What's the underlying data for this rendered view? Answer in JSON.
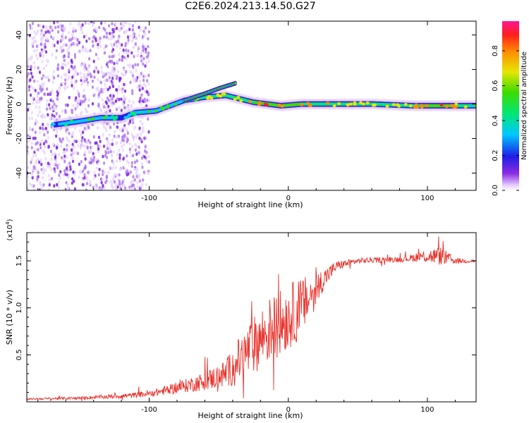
{
  "title": "C2E6.2024.213.14.50.G27",
  "chart_data": [
    {
      "id": "spectrogram",
      "type": "heatmap",
      "xlabel": "Height of straight line (km)",
      "ylabel": "Frequency (Hz)",
      "xlim": [
        -188,
        135
      ],
      "ylim": [
        -50,
        48
      ],
      "x_ticks": [
        -100,
        0,
        100
      ],
      "y_ticks": [
        -40,
        -20,
        0,
        20,
        40
      ],
      "colorbar": {
        "label": "Normalized spectral amplitude",
        "range": [
          0,
          0.97
        ],
        "ticks": [
          0.0,
          0.2,
          0.4,
          0.6,
          0.8
        ]
      },
      "noise_region_x": [
        -188,
        -100
      ],
      "ridge": [
        {
          "x": -168,
          "f": -12,
          "amp": 0.3
        },
        {
          "x": -150,
          "f": -10,
          "amp": 0.45
        },
        {
          "x": -135,
          "f": -8,
          "amp": 0.5
        },
        {
          "x": -120,
          "f": -8,
          "amp": 0.3
        },
        {
          "x": -110,
          "f": -5,
          "amp": 0.35
        },
        {
          "x": -95,
          "f": -4,
          "amp": 0.55
        },
        {
          "x": -85,
          "f": -1,
          "amp": 0.5
        },
        {
          "x": -75,
          "f": 2,
          "amp": 0.55
        },
        {
          "x": -60,
          "f": 4,
          "amp": 0.6
        },
        {
          "x": -45,
          "f": 5,
          "amp": 0.6
        },
        {
          "x": -35,
          "f": 3,
          "amp": 0.65
        },
        {
          "x": -25,
          "f": 1,
          "amp": 0.75
        },
        {
          "x": -15,
          "f": 0,
          "amp": 0.85
        },
        {
          "x": -5,
          "f": -1,
          "amp": 0.8
        },
        {
          "x": 10,
          "f": 0,
          "amp": 0.75
        },
        {
          "x": 30,
          "f": 0,
          "amp": 0.7
        },
        {
          "x": 60,
          "f": 0,
          "amp": 0.65
        },
        {
          "x": 90,
          "f": -1,
          "amp": 0.7
        },
        {
          "x": 110,
          "f": -1,
          "amp": 0.85
        },
        {
          "x": 135,
          "f": -1,
          "amp": 0.5
        }
      ],
      "branch": [
        {
          "x": -75,
          "f": 2
        },
        {
          "x": -60,
          "f": 6
        },
        {
          "x": -50,
          "f": 9
        },
        {
          "x": -38,
          "f": 12
        }
      ]
    },
    {
      "id": "snr",
      "type": "line",
      "xlabel": "Height of straight line (km)",
      "ylabel": "SNR (10 * v/v)",
      "y_multiplier": "(x10^4)",
      "xlim": [
        -188,
        135
      ],
      "ylim": [
        0,
        1.8
      ],
      "x_ticks": [
        -100,
        0,
        100
      ],
      "y_ticks": [
        0.5,
        1.0,
        1.5
      ],
      "y_tick_labels": [
        "0.5",
        "1.0",
        "1.5"
      ],
      "color": "#e8312a",
      "envelope": [
        {
          "x": -188,
          "y": 0.03,
          "noise": 0.01
        },
        {
          "x": -150,
          "y": 0.04,
          "noise": 0.015
        },
        {
          "x": -110,
          "y": 0.07,
          "noise": 0.03
        },
        {
          "x": -95,
          "y": 0.1,
          "noise": 0.04
        },
        {
          "x": -80,
          "y": 0.15,
          "noise": 0.06
        },
        {
          "x": -60,
          "y": 0.22,
          "noise": 0.1
        },
        {
          "x": -45,
          "y": 0.3,
          "noise": 0.15
        },
        {
          "x": -35,
          "y": 0.45,
          "noise": 0.25
        },
        {
          "x": -25,
          "y": 0.6,
          "noise": 0.3
        },
        {
          "x": -15,
          "y": 0.75,
          "noise": 0.35
        },
        {
          "x": -5,
          "y": 0.85,
          "noise": 0.35
        },
        {
          "x": 5,
          "y": 0.95,
          "noise": 0.35
        },
        {
          "x": 15,
          "y": 1.1,
          "noise": 0.25
        },
        {
          "x": 25,
          "y": 1.3,
          "noise": 0.12
        },
        {
          "x": 35,
          "y": 1.45,
          "noise": 0.05
        },
        {
          "x": 50,
          "y": 1.5,
          "noise": 0.03
        },
        {
          "x": 85,
          "y": 1.52,
          "noise": 0.03
        },
        {
          "x": 95,
          "y": 1.55,
          "noise": 0.06
        },
        {
          "x": 110,
          "y": 1.55,
          "noise": 0.1
        },
        {
          "x": 120,
          "y": 1.5,
          "noise": 0.03
        },
        {
          "x": 135,
          "y": 1.5,
          "noise": 0.02
        }
      ]
    }
  ]
}
